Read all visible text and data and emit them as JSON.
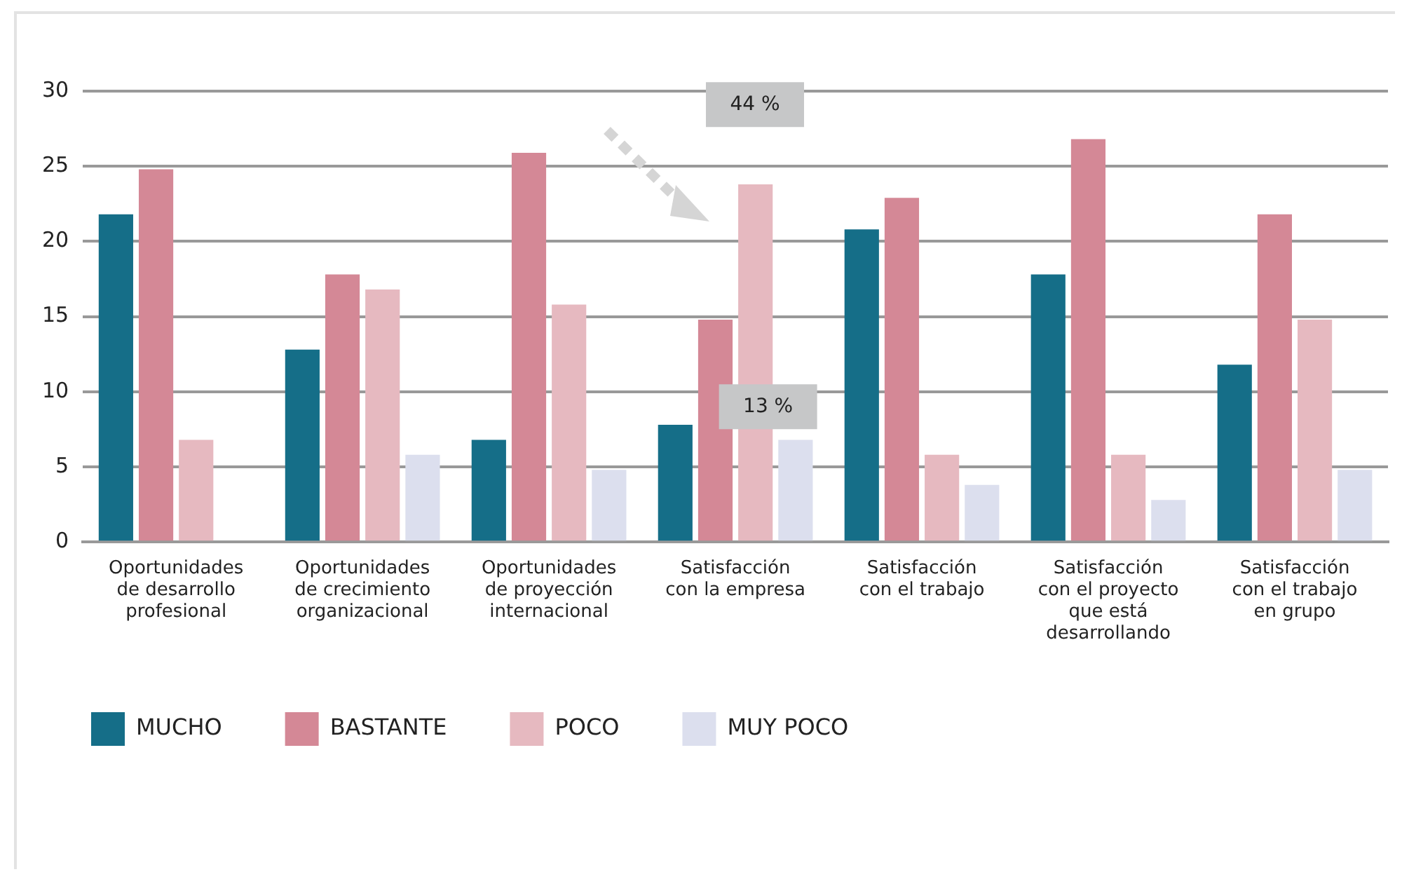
{
  "chart_data": {
    "type": "bar",
    "categories": [
      "Oportunidades de desarrollo profesional",
      "Oportunidades de crecimiento organizacional",
      "Oportunidades de proyección internacional",
      "Satisfacción con la empresa",
      "Satisfacción con el trabajo",
      "Satisfacción con el proyecto que está desarrollando",
      "Satisfacción con el trabajo en grupo"
    ],
    "series": [
      {
        "name": "MUCHO",
        "color": "#156e88",
        "values": [
          21.8,
          12.8,
          6.8,
          7.8,
          20.8,
          17.8,
          11.8
        ]
      },
      {
        "name": "BASTANTE",
        "color": "#d48896",
        "values": [
          24.8,
          17.8,
          25.9,
          14.8,
          22.9,
          26.8,
          21.8
        ]
      },
      {
        "name": "POCO",
        "color": "#e6b9c0",
        "values": [
          6.8,
          16.8,
          15.8,
          23.8,
          5.8,
          5.8,
          14.8
        ]
      },
      {
        "name": "MUY POCO",
        "color": "#dcdfee",
        "values": [
          null,
          5.8,
          4.8,
          6.8,
          3.8,
          2.8,
          4.8
        ]
      }
    ],
    "ylim": [
      0,
      30
    ],
    "yticks": [
      0,
      5,
      10,
      15,
      20,
      25,
      30
    ],
    "grid": "y",
    "legend": "bottom left",
    "annotations": [
      "44 %",
      "13 %"
    ]
  }
}
